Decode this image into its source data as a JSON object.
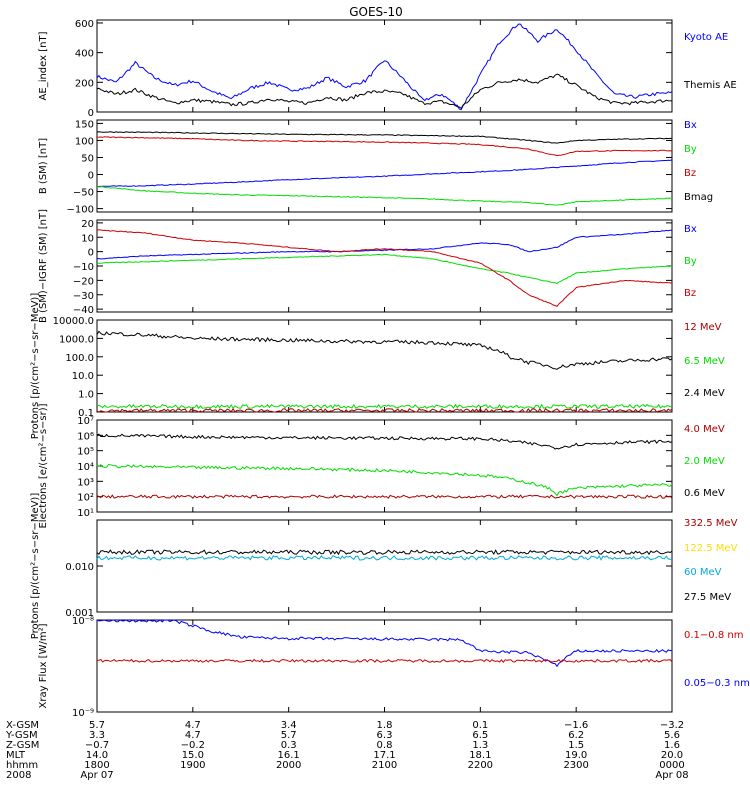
{
  "title": "GOES-10",
  "colors": {
    "black": "#000000",
    "red": "#cc0000",
    "green": "#00dd00",
    "blue": "#0000ff",
    "darkred": "#aa0000",
    "yellow": "#ffdd00",
    "cyan": "#00aadd"
  },
  "chart_data": [
    {
      "type": "line",
      "ylabel": "AE_index [nT]",
      "ylim": [
        0,
        620
      ],
      "yticks": [
        "0",
        "200",
        "400",
        "600"
      ],
      "series": [
        {
          "name": "Kyoto AE",
          "color": "blue",
          "x": [
            18.0,
            18.2,
            18.4,
            18.6,
            18.8,
            19.0,
            19.2,
            19.4,
            19.6,
            19.8,
            20.0,
            20.2,
            20.4,
            20.6,
            20.8,
            21.0,
            21.2,
            21.4,
            21.6,
            21.8,
            22.0,
            22.2,
            22.4,
            22.6,
            22.8,
            23.0,
            23.2,
            23.4,
            23.6,
            23.8,
            24.0
          ],
          "y": [
            240,
            200,
            330,
            230,
            180,
            210,
            140,
            90,
            160,
            200,
            150,
            160,
            230,
            170,
            210,
            350,
            220,
            80,
            120,
            20,
            250,
            470,
            600,
            480,
            560,
            420,
            260,
            120,
            100,
            120,
            130
          ]
        },
        {
          "name": "Themis AE",
          "color": "black",
          "x": [
            18.0,
            18.2,
            18.4,
            18.6,
            18.8,
            19.0,
            19.2,
            19.4,
            19.6,
            19.8,
            20.0,
            20.2,
            20.4,
            20.6,
            20.8,
            21.0,
            21.2,
            21.4,
            21.6,
            21.8,
            22.0,
            22.2,
            22.4,
            22.6,
            22.8,
            23.0,
            23.2,
            23.4,
            23.6,
            23.8,
            24.0
          ],
          "y": [
            160,
            120,
            150,
            100,
            60,
            80,
            70,
            50,
            60,
            90,
            70,
            60,
            100,
            80,
            130,
            140,
            120,
            60,
            70,
            30,
            150,
            200,
            220,
            200,
            250,
            180,
            100,
            60,
            60,
            70,
            80
          ]
        }
      ],
      "legend": [
        "Kyoto AE",
        "Themis AE"
      ]
    },
    {
      "type": "line",
      "ylabel": "B (SM) [nT]",
      "ylim": [
        -110,
        160
      ],
      "yticks": [
        "150",
        "100",
        "50",
        "0",
        "−50",
        "−100"
      ],
      "series": [
        {
          "name": "Bx",
          "color": "blue",
          "x": [
            18.0,
            18.5,
            19.0,
            19.5,
            20.0,
            20.5,
            21.0,
            21.5,
            22.0,
            22.5,
            23.0,
            23.5,
            24.0
          ],
          "y": [
            -35,
            -33,
            -28,
            -22,
            -15,
            -10,
            -5,
            2,
            8,
            15,
            25,
            35,
            42
          ]
        },
        {
          "name": "By",
          "color": "green",
          "x": [
            18.0,
            18.5,
            19.0,
            19.5,
            20.0,
            20.5,
            21.0,
            21.5,
            22.0,
            22.5,
            22.8,
            23.0,
            23.5,
            24.0
          ],
          "y": [
            -35,
            -48,
            -55,
            -60,
            -62,
            -65,
            -68,
            -72,
            -78,
            -82,
            -90,
            -80,
            -75,
            -70
          ]
        },
        {
          "name": "Bz",
          "color": "red",
          "x": [
            18.0,
            18.5,
            19.0,
            19.5,
            20.0,
            20.5,
            21.0,
            21.5,
            22.0,
            22.5,
            22.8,
            23.0,
            23.5,
            24.0
          ],
          "y": [
            110,
            108,
            105,
            100,
            98,
            97,
            95,
            92,
            88,
            75,
            55,
            68,
            70,
            70
          ]
        },
        {
          "name": "Bmag",
          "color": "black",
          "x": [
            18.0,
            18.5,
            19.0,
            19.5,
            20.0,
            20.5,
            21.0,
            21.5,
            22.0,
            22.5,
            22.8,
            23.0,
            23.5,
            24.0
          ],
          "y": [
            125,
            124,
            122,
            120,
            118,
            117,
            116,
            114,
            112,
            100,
            92,
            100,
            104,
            106
          ]
        }
      ],
      "legend": [
        "Bx",
        "By",
        "Bz",
        "Bmag"
      ]
    },
    {
      "type": "line",
      "ylabel": "B (SM)−IGRF (SM) [nT]",
      "ylim": [
        -42,
        22
      ],
      "yticks": [
        "20",
        "10",
        "0",
        "−10",
        "−20",
        "−30",
        "−40"
      ],
      "series": [
        {
          "name": "Bx",
          "color": "blue",
          "x": [
            18.0,
            18.5,
            19.0,
            19.5,
            20.0,
            20.5,
            21.0,
            21.5,
            22.0,
            22.3,
            22.5,
            22.8,
            23.0,
            23.5,
            24.0
          ],
          "y": [
            -5,
            -3,
            -2,
            -1,
            0,
            0,
            1,
            2,
            6,
            5,
            0,
            3,
            10,
            12,
            15
          ]
        },
        {
          "name": "By",
          "color": "green",
          "x": [
            18.0,
            18.5,
            19.0,
            19.5,
            20.0,
            20.5,
            21.0,
            21.5,
            22.0,
            22.3,
            22.5,
            22.8,
            23.0,
            23.5,
            24.0
          ],
          "y": [
            -8,
            -7,
            -6,
            -5,
            -4,
            -3,
            -2,
            -5,
            -12,
            -15,
            -18,
            -22,
            -15,
            -12,
            -10
          ]
        },
        {
          "name": "Bz",
          "color": "red",
          "x": [
            18.0,
            18.5,
            19.0,
            19.5,
            20.0,
            20.5,
            21.0,
            21.5,
            22.0,
            22.3,
            22.5,
            22.8,
            23.0,
            23.5,
            24.0
          ],
          "y": [
            15,
            13,
            8,
            6,
            3,
            0,
            2,
            0,
            -8,
            -20,
            -30,
            -38,
            -25,
            -20,
            -22
          ]
        }
      ],
      "legend": [
        "Bx",
        "By",
        "Bz"
      ]
    },
    {
      "type": "line",
      "ylabel": "Protons [p/(cm²−s−sr−MeV)]",
      "scale": "log",
      "ylim": [
        0.1,
        10000
      ],
      "yticks": [
        "10000.0",
        "1000.0",
        "100.0",
        "10.0",
        "1.0",
        "0.1"
      ],
      "series": [
        {
          "name": "2.4 MeV",
          "color": "black",
          "x": [
            18.0,
            18.5,
            19.0,
            19.5,
            20.0,
            20.5,
            21.0,
            21.5,
            22.0,
            22.3,
            22.5,
            22.8,
            23.0,
            23.5,
            24.0
          ],
          "y": [
            2000,
            1500,
            1000,
            900,
            800,
            700,
            650,
            600,
            400,
            100,
            50,
            25,
            40,
            60,
            80
          ]
        },
        {
          "name": "6.5 MeV",
          "color": "green",
          "x": [
            18.0,
            24.0
          ],
          "y": [
            0.2,
            0.2
          ]
        },
        {
          "name": "12 MeV",
          "color": "darkred",
          "x": [
            18.0,
            24.0
          ],
          "y": [
            0.12,
            0.12
          ]
        }
      ],
      "legend": [
        "12 MeV",
        "6.5 MeV",
        "2.4 MeV"
      ]
    },
    {
      "type": "line",
      "ylabel": "Electrons [e/(cm²−s−sr)]",
      "scale": "log",
      "ylim": [
        10,
        10000000
      ],
      "yticks": [
        "10⁷",
        "10⁶",
        "10⁵",
        "10⁴",
        "10³",
        "10²",
        "10¹"
      ],
      "series": [
        {
          "name": "0.6 MeV",
          "color": "black",
          "x": [
            18.0,
            19.0,
            20.0,
            21.0,
            22.0,
            22.5,
            22.8,
            23.0,
            23.5,
            24.0
          ],
          "y": [
            1000000,
            800000,
            700000,
            650000,
            600000,
            300000,
            150000,
            250000,
            350000,
            400000
          ]
        },
        {
          "name": "2.0 MeV",
          "color": "green",
          "x": [
            18.0,
            19.0,
            20.0,
            21.0,
            22.0,
            22.5,
            22.8,
            23.0,
            23.5,
            24.0
          ],
          "y": [
            10000,
            8000,
            7000,
            5000,
            2500,
            800,
            150,
            350,
            500,
            600
          ]
        },
        {
          "name": "4.0 MeV",
          "color": "darkred",
          "x": [
            18.0,
            24.0
          ],
          "y": [
            100,
            100
          ]
        }
      ],
      "legend": [
        "4.0 MeV",
        "2.0 MeV",
        "0.6 MeV"
      ]
    },
    {
      "type": "line",
      "ylabel": "Protons [p/(cm²−s−sr−MeV)]",
      "scale": "log",
      "ylim": [
        0.001,
        0.1
      ],
      "yticks": [
        "0.010",
        "0.001"
      ],
      "series": [
        {
          "name": "27.5 MeV",
          "color": "black",
          "x": [
            18.0,
            24.0
          ],
          "y": [
            0.02,
            0.02
          ]
        },
        {
          "name": "60 MeV",
          "color": "cyan",
          "x": [
            18.0,
            24.0
          ],
          "y": [
            0.015,
            0.015
          ]
        }
      ],
      "legend": [
        "332.5 MeV",
        "122.5 MeV",
        "60 MeV",
        "27.5 MeV"
      ]
    },
    {
      "type": "line",
      "ylabel": "Xray Flux [W/m²]",
      "scale": "log",
      "ylim": [
        1e-09,
        1e-08
      ],
      "yticks": [
        "10⁻⁸",
        "10⁻⁹"
      ],
      "series": [
        {
          "name": "0.1−0.8 nm",
          "color": "blue",
          "x": [
            18.0,
            18.8,
            19.2,
            19.5,
            20.0,
            21.0,
            21.8,
            22.0,
            22.5,
            22.8,
            23.0,
            23.5,
            24.0
          ],
          "y": [
            9.8e-09,
            9.8e-09,
            7.5e-09,
            6.5e-09,
            6.3e-09,
            6.2e-09,
            6.1e-09,
            4.6e-09,
            4.4e-09,
            3.2e-09,
            4.6e-09,
            4.6e-09,
            4.6e-09
          ]
        },
        {
          "name": "0.05−0.3 nm",
          "color": "red",
          "x": [
            18.0,
            24.0
          ],
          "y": [
            3.6e-09,
            3.6e-09
          ]
        }
      ],
      "legend": [
        "0.1−0.8 nm",
        "0.05−0.3 nm"
      ]
    }
  ],
  "xaxis": {
    "row_labels": [
      "X-GSM",
      "Y-GSM",
      "Z-GSM",
      "MLT",
      "hhmm",
      "2008"
    ],
    "columns": [
      [
        "5.7",
        "3.3",
        "−0.7",
        "14.0",
        "1800",
        "Apr 07"
      ],
      [
        "4.7",
        "4.7",
        "−0.2",
        "15.0",
        "1900",
        ""
      ],
      [
        "3.4",
        "5.7",
        "0.3",
        "16.1",
        "2000",
        ""
      ],
      [
        "1.8",
        "6.3",
        "0.8",
        "17.1",
        "2100",
        ""
      ],
      [
        "0.1",
        "6.5",
        "1.3",
        "18.1",
        "2200",
        ""
      ],
      [
        "−1.6",
        "6.2",
        "1.5",
        "19.0",
        "2300",
        ""
      ],
      [
        "−3.2",
        "5.6",
        "1.6",
        "20.0",
        "0000",
        "Apr 08"
      ]
    ]
  }
}
